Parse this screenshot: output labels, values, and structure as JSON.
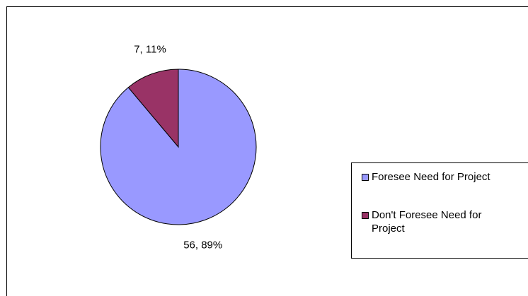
{
  "chart_data": {
    "type": "pie",
    "title": "",
    "start_angle_deg": 0,
    "direction": "clockwise",
    "slices": [
      {
        "label": "Foresee Need for Project",
        "value": 56,
        "percent": 89,
        "color": "#9999ff",
        "data_label": "56, 89%"
      },
      {
        "label": "Don't Foresee Need for\nProject",
        "value": 7,
        "percent": 11,
        "color": "#993366",
        "data_label": "7, 11%"
      }
    ],
    "legend_placement": "right"
  }
}
